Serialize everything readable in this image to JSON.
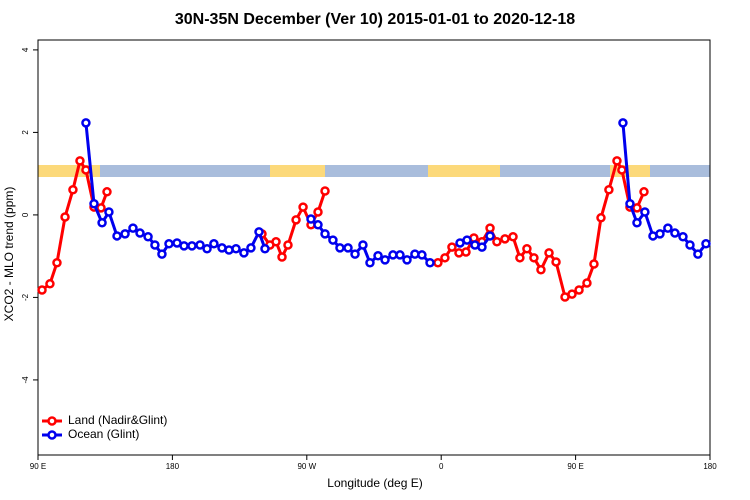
{
  "chart_data": {
    "type": "line",
    "title": "30N-35N December (Ver 10)   2015-01-01 to 2020-12-18",
    "x_label": "Longitude (deg E)",
    "y_label": "XCO2 - MLO trend (ppm)",
    "xlim": [
      90,
      540
    ],
    "ylim": [
      -5.82,
      4.24
    ],
    "xticks": [
      {
        "value": 90,
        "label": "90 E"
      },
      180,
      {
        "value": 270,
        "label": "90 W"
      },
      0.0,
      {
        "value": 450,
        "label": "90 E"
      },
      {
        "value": 540,
        "label": "180"
      }
    ],
    "yticks": [
      -4,
      -2,
      0,
      2,
      4
    ],
    "legend": "bottom-left",
    "series": [
      {
        "name": "Land (Nadir&Glint)",
        "color": "#ff0000",
        "x": [
          92.7,
          98.0,
          102.7,
          108.1,
          113.4,
          118.1,
          122.1,
          127.5,
          132.2,
          136.2,
          null,
          240.0,
          245.3,
          249.4,
          253.4,
          257.4,
          262.8,
          267.5,
          272.8,
          277.5,
          282.2,
          null,
          357.8,
          362.5,
          367.2,
          371.9,
          376.6,
          381.9,
          387.3,
          392.7,
          397.3,
          402.7,
          408.1,
          412.7,
          417.4,
          422.1,
          426.8,
          432.2,
          436.9,
          442.9,
          447.6,
          452.3,
          457.6,
          462.3,
          467.0,
          472.3,
          477.7,
          481.0,
          486.4,
          491.1,
          495.8
        ],
        "values": [
          -1.82,
          -1.67,
          -1.16,
          -0.05,
          0.61,
          1.31,
          1.09,
          0.19,
          0.17,
          0.56,
          null,
          -0.46,
          -0.73,
          -0.65,
          -1.02,
          -0.73,
          -0.12,
          0.19,
          -0.24,
          0.07,
          0.58,
          null,
          -1.16,
          -1.04,
          -0.78,
          -0.92,
          -0.9,
          -0.56,
          -0.65,
          -0.32,
          -0.65,
          -0.58,
          -0.53,
          -1.04,
          -0.82,
          -1.04,
          -1.33,
          -0.92,
          -1.14,
          -1.99,
          -1.92,
          -1.82,
          -1.65,
          -1.19,
          -0.07,
          0.61,
          1.31,
          1.09,
          0.19,
          0.17,
          0.56
        ]
      },
      {
        "name": "Ocean (Glint)",
        "color": "#0000ee",
        "x": [
          122.1,
          127.5,
          132.9,
          137.5,
          142.9,
          148.3,
          153.6,
          158.3,
          163.7,
          168.3,
          173.0,
          177.7,
          183.1,
          187.8,
          193.1,
          198.5,
          203.2,
          207.8,
          213.2,
          217.9,
          222.6,
          227.9,
          232.6,
          238.0,
          242.0,
          null,
          272.8,
          277.5,
          282.2,
          287.5,
          292.2,
          297.6,
          302.3,
          307.6,
          312.3,
          317.7,
          322.4,
          327.7,
          332.4,
          337.1,
          342.4,
          347.1,
          352.5,
          null,
          372.6,
          377.3,
          382.6,
          387.3,
          392.7,
          null,
          481.7,
          486.4,
          491.1,
          496.4,
          501.8,
          506.5,
          511.8,
          516.5,
          521.9,
          526.6,
          531.9,
          537.3
        ],
        "values": [
          2.23,
          0.27,
          -0.19,
          0.07,
          -0.51,
          -0.46,
          -0.32,
          -0.44,
          -0.53,
          -0.73,
          -0.95,
          -0.7,
          -0.68,
          -0.75,
          -0.75,
          -0.73,
          -0.82,
          -0.7,
          -0.8,
          -0.85,
          -0.82,
          -0.92,
          -0.8,
          -0.41,
          -0.82,
          null,
          -0.1,
          -0.24,
          -0.46,
          -0.61,
          -0.8,
          -0.8,
          -0.95,
          -0.73,
          -1.16,
          -0.99,
          -1.09,
          -0.97,
          -0.97,
          -1.09,
          -0.95,
          -0.97,
          -1.16,
          null,
          -0.68,
          -0.61,
          -0.73,
          -0.78,
          -0.51,
          null,
          2.23,
          0.27,
          -0.19,
          0.07,
          -0.51,
          -0.46,
          -0.32,
          -0.44,
          -0.53,
          -0.73,
          -0.95,
          -0.7
        ]
      }
    ]
  }
}
